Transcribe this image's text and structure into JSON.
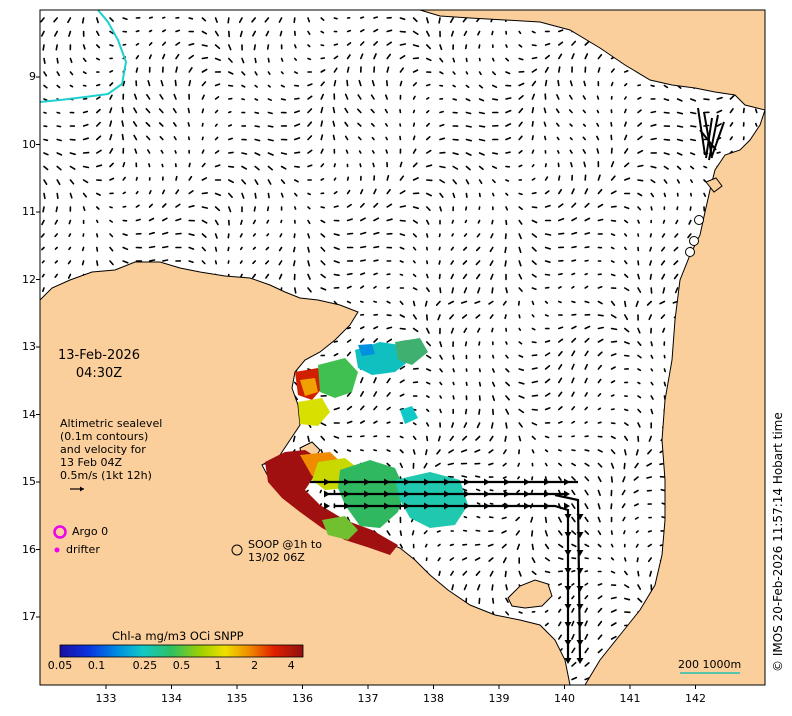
{
  "map": {
    "date": "13-Feb-2026",
    "time": "04:30Z",
    "altimetry_note": [
      "Altimetric sealevel",
      "(0.1m contours)",
      "and velocity for",
      "13 Feb 04Z",
      "0.5m/s (1kt 12h)"
    ],
    "argo_label": "Argo 0",
    "drifter_label": "drifter",
    "soop_label": [
      "SOOP @1h to",
      "13/02 06Z"
    ],
    "colorbar_title": "Chl-a mg/m3 OCi SNPP",
    "colorbar_ticks": [
      "0.05",
      "0.1",
      "0.25",
      "0.5",
      "1",
      "2",
      "4"
    ],
    "colorbar_tick_values": [
      0.05,
      0.1,
      0.25,
      0.5,
      1,
      2,
      4
    ],
    "scale_label": "200  1000m",
    "credit": "© IMOS 20-Feb-2026 11:57:14 Hobart time",
    "lat_ticks": [
      "9",
      "10",
      "11",
      "12",
      "13",
      "14",
      "15",
      "16",
      "17"
    ],
    "lon_ticks": [
      "133",
      "134",
      "135",
      "136",
      "137",
      "138",
      "139",
      "140",
      "141",
      "142"
    ],
    "colors": {
      "land": "#fbcf9c",
      "ocean": "#ffffff",
      "coast": "#000000",
      "argo": "#ee00ee",
      "drifter": "#ee00ee",
      "contour": "#20d0d0",
      "scale_bar": "#20c0b0"
    }
  }
}
